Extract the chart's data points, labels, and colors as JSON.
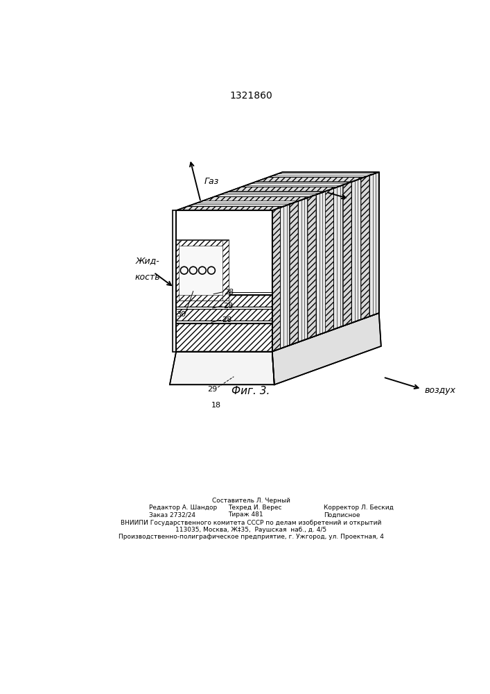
{
  "patent_number": "1321860",
  "figure_caption": "Фиг. 3.",
  "labels": {
    "gas": "Газ",
    "liquid_line1": "Жид-",
    "liquid_line2": "кость",
    "air": "воздух"
  },
  "numbers": [
    "18",
    "28",
    "28",
    "28",
    "29",
    "30"
  ],
  "footer_editor": "Редактор А. Шандор",
  "footer_order": "Заказ 2732/24",
  "footer_composer": "Составитель Л. Черный",
  "footer_tech": "Техред И. Верес",
  "footer_corrector": "Корректор Л. Бескид",
  "footer_tirazh": "Тираж 481",
  "footer_podp": "Подписное",
  "footer_vniip": "ВНИИПИ Государственного комитета СССР по делам изобретений и открытий",
  "footer_addr": "113035, Москва, Ж‡35,  Раушская  наб., д. 4/5",
  "footer_plant": "Производственно-полиграфическое предприятие, г. Ужгород, ул. Проектная, 4",
  "bg_color": "#ffffff",
  "line_color": "#000000"
}
